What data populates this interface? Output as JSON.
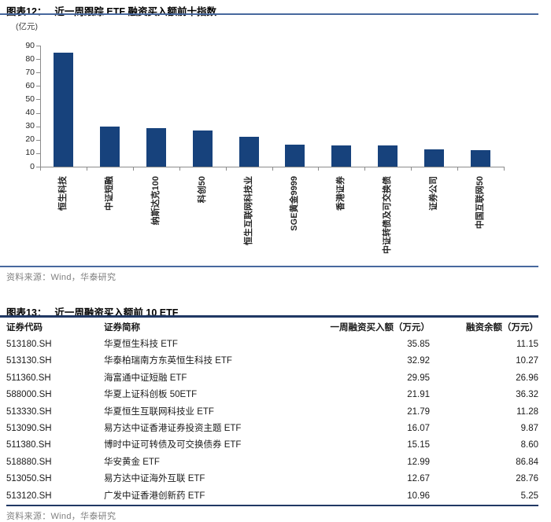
{
  "figure12": {
    "label": "图表12：",
    "title": "近一周跟踪 ETF 融资买入额前十指数",
    "unit": "(亿元)",
    "source": "资料来源：Wind，华泰研究"
  },
  "chart_data": {
    "type": "bar",
    "title": "近一周跟踪 ETF 融资买入额前十指数",
    "ylabel": "(亿元)",
    "categories": [
      "恒生科技",
      "中证短融",
      "纳斯达克100",
      "科创50",
      "恒生互联网科技业",
      "SGE黄金9999",
      "香港证券",
      "中证转债及可交换债",
      "证券公司",
      "中国互联网50"
    ],
    "values": [
      85,
      30,
      28.5,
      27,
      22.5,
      16.5,
      16,
      15.5,
      13,
      12.5
    ],
    "ylim": [
      0,
      90
    ],
    "ytick_step": 10,
    "grid": false,
    "legend": false,
    "bar_color": "#17427c"
  },
  "figure13": {
    "label": "图表13：",
    "title": "近一周融资买入额前 10 ETF",
    "source": "资料来源：Wind，华泰研究"
  },
  "table": {
    "columns": [
      "证券代码",
      "证券简称",
      "一周融资买入额（万元）",
      "融资余额（万元）"
    ],
    "rows": [
      [
        "513180.SH",
        "华夏恒生科技 ETF",
        "35.85",
        "11.15"
      ],
      [
        "513130.SH",
        "华泰柏瑞南方东英恒生科技 ETF",
        "32.92",
        "10.27"
      ],
      [
        "511360.SH",
        "海富通中证短融 ETF",
        "29.95",
        "26.96"
      ],
      [
        "588000.SH",
        "华夏上证科创板 50ETF",
        "21.91",
        "36.32"
      ],
      [
        "513330.SH",
        "华夏恒生互联网科技业 ETF",
        "21.79",
        "11.28"
      ],
      [
        "513090.SH",
        "易方达中证香港证券投资主题 ETF",
        "16.07",
        "9.87"
      ],
      [
        "511380.SH",
        "博时中证可转债及可交换债券 ETF",
        "15.15",
        "8.60"
      ],
      [
        "518880.SH",
        "华安黄金 ETF",
        "12.99",
        "86.84"
      ],
      [
        "513050.SH",
        "易方达中证海外互联 ETF",
        "12.67",
        "28.76"
      ],
      [
        "513120.SH",
        "广发中证香港创新药 ETF",
        "10.96",
        "5.25"
      ]
    ]
  },
  "colors": {
    "bar": "#17427c",
    "rule_navy": "#203864",
    "rule_blue": "#47689e",
    "axis": "#8c8c8c",
    "source_text": "#7f7f7f"
  }
}
